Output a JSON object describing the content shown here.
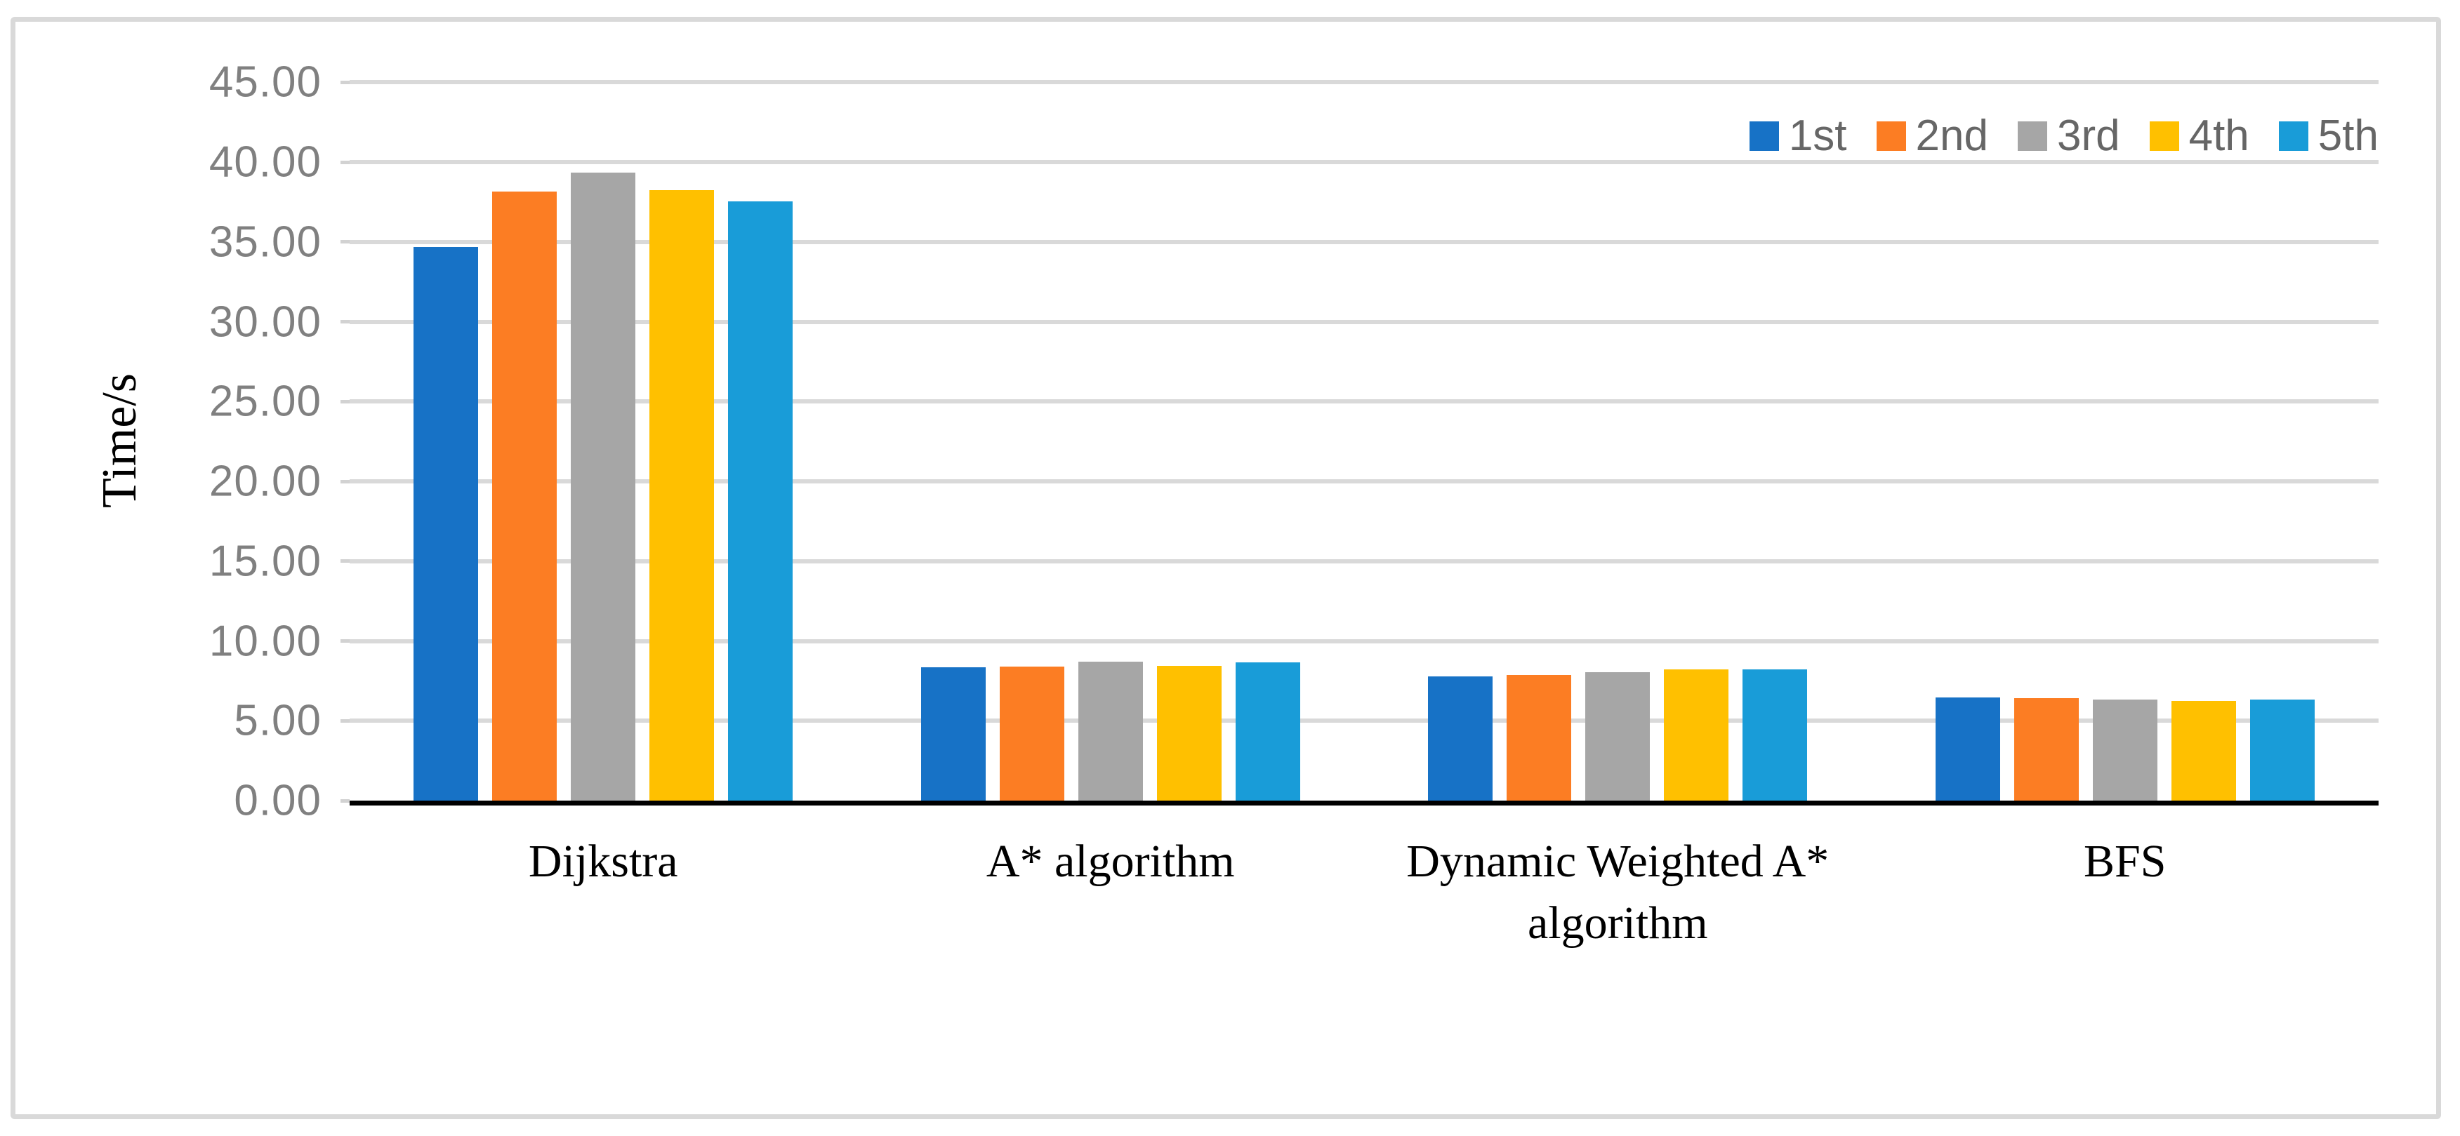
{
  "chart_data": {
    "type": "bar",
    "title": "",
    "ylabel": "Time/s",
    "xlabel": "",
    "ylim": [
      0,
      45
    ],
    "ytick_step": 5,
    "ytick_labels": [
      "0.00",
      "5.00",
      "10.00",
      "15.00",
      "20.00",
      "25.00",
      "30.00",
      "35.00",
      "40.00",
      "45.00"
    ],
    "grid": "horizontal",
    "legend_position": "top-right",
    "categories": [
      "Dijkstra",
      "A* algorithm",
      "Dynamic Weighted A* algorithm",
      "BFS"
    ],
    "category_label_lines": [
      [
        "Dijkstra"
      ],
      [
        "A* algorithm"
      ],
      [
        "Dynamic Weighted A*",
        "algorithm"
      ],
      [
        "BFS"
      ]
    ],
    "series": [
      {
        "name": "1st",
        "color": "#1772C6",
        "values": [
          34.7,
          8.35,
          7.8,
          6.45
        ]
      },
      {
        "name": "2nd",
        "color": "#FC7D23",
        "values": [
          38.15,
          8.4,
          7.85,
          6.4
        ]
      },
      {
        "name": "3rd",
        "color": "#A6A6A6",
        "values": [
          39.35,
          8.7,
          8.05,
          6.35
        ]
      },
      {
        "name": "4th",
        "color": "#FFC000",
        "values": [
          38.25,
          8.45,
          8.2,
          6.25
        ]
      },
      {
        "name": "5th",
        "color": "#199CD8",
        "values": [
          37.55,
          8.65,
          8.2,
          6.35
        ]
      }
    ]
  },
  "colors": {
    "background": "#FFFFFF",
    "figure_border": "#D9D9D9",
    "gridline": "#D9D9D9",
    "axis": "#000000",
    "ytick_text": "#808080",
    "xtick_text": "#000000",
    "legend_text": "#666666"
  }
}
